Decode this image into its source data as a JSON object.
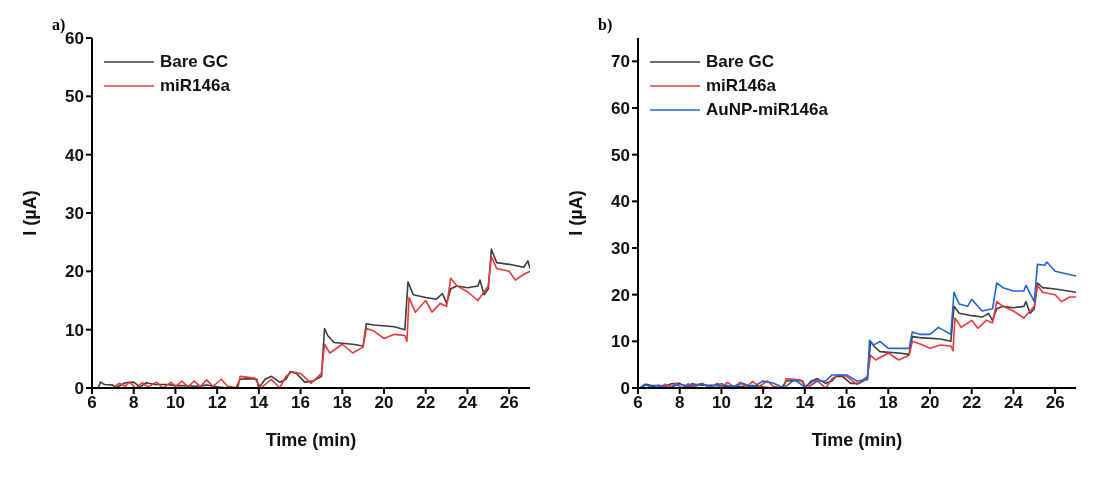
{
  "chart_data": [
    {
      "type": "line",
      "title": "a)",
      "xlabel": "Time (min)",
      "ylabel": "I (µA)",
      "xlim": [
        6,
        27
      ],
      "xticks": [
        6,
        8,
        10,
        12,
        14,
        16,
        18,
        20,
        22,
        24,
        26
      ],
      "ylim": [
        0,
        60
      ],
      "yticks": [
        0,
        10,
        20,
        30,
        40,
        50,
        60
      ],
      "legend": "top left",
      "marker": "none",
      "line_style": "solid",
      "series": [
        {
          "name": "Bare GC",
          "color": "#3c3c3c",
          "x": [
            6.3,
            6.4,
            6.6,
            7.0,
            7.1,
            7.6,
            8.0,
            8.3,
            8.6,
            9.0,
            9.6,
            10.0,
            10.4,
            11.0,
            11.5,
            12.0,
            12.5,
            12.9,
            13.1,
            13.5,
            13.9,
            14.0,
            14.3,
            14.6,
            15.0,
            15.3,
            15.5,
            15.8,
            16.2,
            16.6,
            17.0,
            17.15,
            17.3,
            17.6,
            18.5,
            19.0,
            19.15,
            19.5,
            20.5,
            21.0,
            21.15,
            21.4,
            22.0,
            22.5,
            22.8,
            23.0,
            23.2,
            23.5,
            24.0,
            24.5,
            24.6,
            24.8,
            25.0,
            25.15,
            25.4,
            26.0,
            26.7,
            26.9,
            27.0
          ],
          "values": [
            0,
            1.0,
            0.6,
            0.5,
            0,
            0.9,
            1.0,
            0.2,
            0.9,
            0.6,
            0.6,
            0.4,
            0.4,
            0.3,
            0.5,
            0.2,
            0,
            0,
            1.5,
            1.6,
            1.5,
            0,
            1.5,
            2.0,
            1.0,
            1.5,
            2.8,
            2.5,
            1.0,
            1.2,
            2.0,
            10.2,
            9.0,
            7.8,
            7.5,
            7.2,
            11.0,
            10.8,
            10.5,
            10.0,
            18.2,
            16.0,
            15.5,
            15.2,
            16.2,
            14.5,
            17.0,
            17.5,
            17.2,
            17.5,
            18.5,
            16.0,
            17.0,
            23.8,
            21.5,
            21.2,
            20.7,
            21.8,
            20.5
          ]
        },
        {
          "name": "miR146a",
          "color": "#e83a3a",
          "x": [
            7.0,
            7.3,
            7.6,
            7.8,
            8.1,
            8.4,
            8.7,
            9.1,
            9.4,
            9.8,
            10.0,
            10.3,
            10.6,
            10.9,
            11.2,
            11.5,
            11.8,
            12.2,
            12.5,
            13.0,
            13.1,
            13.8,
            14.1,
            14.6,
            15.0,
            15.3,
            15.6,
            16.0,
            16.5,
            17.0,
            17.15,
            17.4,
            18.0,
            18.5,
            19.0,
            19.15,
            19.5,
            20.0,
            20.5,
            21.0,
            21.1,
            21.2,
            21.5,
            22.0,
            22.3,
            22.7,
            23.0,
            23.2,
            23.5,
            24.0,
            24.5,
            25.0,
            25.15,
            25.4,
            26.0,
            26.3,
            26.7,
            27.0
          ],
          "values": [
            0,
            0.8,
            0.3,
            1.0,
            0,
            0.9,
            0.2,
            1.0,
            0,
            1.0,
            0.2,
            1.2,
            0.2,
            1.2,
            0.2,
            1.4,
            0.3,
            1.5,
            0.3,
            0,
            2.0,
            1.7,
            0,
            1.5,
            0,
            2.0,
            2.8,
            2.5,
            0.8,
            2.5,
            7.5,
            6.0,
            7.5,
            6.0,
            7.0,
            10.2,
            9.8,
            8.5,
            9.2,
            9.0,
            8.0,
            15.5,
            13.0,
            15.0,
            13.0,
            14.5,
            14.0,
            18.8,
            17.5,
            16.5,
            15.0,
            17.5,
            22.5,
            20.5,
            20.0,
            18.5,
            19.5,
            20.0
          ]
        }
      ]
    },
    {
      "type": "line",
      "title": "b)",
      "xlabel": "Time (min)",
      "ylabel": "I (µA)",
      "xlim": [
        6,
        27
      ],
      "xticks": [
        6,
        8,
        10,
        12,
        14,
        16,
        18,
        20,
        22,
        24,
        26
      ],
      "ylim": [
        0,
        75
      ],
      "yticks": [
        0,
        10,
        20,
        30,
        40,
        50,
        60,
        70
      ],
      "legend": "top left",
      "marker": "none",
      "line_style": "solid",
      "series": [
        {
          "name": "Bare GC",
          "color": "#3c3c3c",
          "x": [
            6.1,
            6.4,
            6.6,
            7.0,
            7.1,
            7.6,
            8.0,
            8.3,
            8.6,
            9.0,
            9.6,
            10.0,
            10.4,
            11.0,
            11.5,
            12.0,
            12.5,
            12.9,
            13.1,
            13.5,
            13.9,
            14.0,
            14.3,
            14.6,
            15.0,
            15.3,
            15.5,
            15.8,
            16.2,
            16.6,
            17.0,
            17.15,
            17.3,
            17.6,
            18.5,
            19.0,
            19.15,
            19.5,
            20.5,
            21.0,
            21.15,
            21.4,
            22.0,
            22.5,
            22.8,
            23.0,
            23.2,
            23.5,
            24.0,
            24.5,
            24.6,
            24.8,
            25.0,
            25.15,
            25.4,
            26.0,
            27.0
          ],
          "values": [
            0,
            0.8,
            0.6,
            0.5,
            0,
            0.9,
            1.0,
            0.2,
            0.9,
            0.6,
            0.6,
            0.4,
            0.4,
            0.3,
            0.5,
            0.2,
            0,
            0,
            1.5,
            1.6,
            1.5,
            0,
            1.5,
            2.0,
            1.0,
            1.5,
            2.5,
            2.5,
            1.0,
            1.0,
            2.0,
            10.0,
            9.0,
            7.8,
            7.5,
            7.2,
            11.0,
            10.8,
            10.5,
            10.0,
            17.5,
            16.0,
            15.5,
            15.2,
            16.0,
            14.5,
            17.0,
            17.5,
            17.2,
            17.5,
            18.5,
            16.0,
            17.0,
            22.5,
            21.5,
            21.2,
            20.5
          ]
        },
        {
          "name": "miR146a",
          "color": "#e83a3a",
          "x": [
            7.0,
            7.3,
            7.6,
            7.8,
            8.1,
            8.4,
            8.7,
            9.1,
            9.4,
            9.8,
            10.0,
            10.3,
            10.6,
            10.9,
            11.2,
            11.5,
            11.8,
            12.2,
            12.5,
            13.0,
            13.1,
            13.8,
            14.1,
            14.6,
            15.0,
            15.3,
            15.6,
            16.0,
            16.5,
            17.0,
            17.15,
            17.4,
            18.0,
            18.5,
            19.0,
            19.15,
            19.5,
            20.0,
            20.5,
            21.0,
            21.1,
            21.2,
            21.5,
            22.0,
            22.3,
            22.7,
            23.0,
            23.2,
            23.5,
            24.0,
            24.5,
            25.0,
            25.15,
            25.4,
            26.0,
            26.3,
            26.7,
            27.0
          ],
          "values": [
            0,
            0.8,
            0.3,
            1.0,
            0,
            0.9,
            0.2,
            1.0,
            0,
            1.0,
            0.2,
            1.2,
            0.2,
            1.2,
            0.2,
            1.4,
            0.3,
            1.5,
            0.3,
            0,
            2.0,
            1.7,
            0,
            1.5,
            0,
            2.0,
            2.8,
            2.5,
            0.8,
            2.5,
            7.0,
            6.0,
            7.5,
            6.0,
            7.0,
            10.0,
            9.5,
            8.5,
            9.2,
            9.0,
            8.0,
            15.0,
            13.0,
            14.5,
            12.8,
            14.5,
            14.0,
            18.5,
            17.5,
            16.5,
            15.0,
            17.5,
            22.0,
            20.5,
            20.0,
            18.5,
            19.5,
            19.5
          ]
        },
        {
          "name": "AuNP-miR146a",
          "color": "#1f66d6",
          "x": [
            6.1,
            6.3,
            6.6,
            7.0,
            7.5,
            8.0,
            8.5,
            9.0,
            9.5,
            10.0,
            10.5,
            11.0,
            11.5,
            12.0,
            12.5,
            13.0,
            13.5,
            14.0,
            14.4,
            15.0,
            15.3,
            16.0,
            16.5,
            17.0,
            17.1,
            17.3,
            17.6,
            18.0,
            19.0,
            19.15,
            19.5,
            20.0,
            20.4,
            21.0,
            21.15,
            21.4,
            21.8,
            22.0,
            22.5,
            23.0,
            23.2,
            23.5,
            24.0,
            24.5,
            24.6,
            25.0,
            25.15,
            25.5,
            25.6,
            26.0,
            27.0
          ],
          "values": [
            0,
            0.8,
            0.2,
            0.6,
            0.1,
            0.8,
            0.3,
            0.9,
            0.3,
            0.9,
            0.2,
            1.0,
            0.2,
            1.5,
            1.0,
            0,
            1.8,
            0.2,
            1.5,
            1.5,
            2.8,
            2.8,
            1.5,
            1.8,
            10.2,
            9.2,
            10.0,
            8.5,
            8.5,
            12.0,
            11.5,
            11.5,
            13.0,
            11.5,
            20.5,
            18.0,
            17.5,
            19.0,
            16.5,
            17.0,
            22.5,
            21.5,
            20.8,
            20.8,
            22.0,
            18.5,
            26.5,
            26.3,
            27.0,
            25.0,
            24.0
          ]
        }
      ]
    }
  ]
}
